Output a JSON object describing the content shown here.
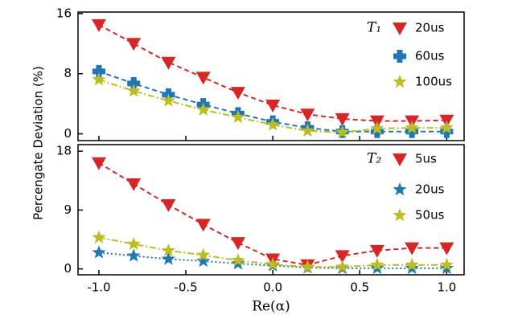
{
  "chart_data": [
    {
      "type": "line",
      "ylabel": "Percengate Deviation (%)",
      "legend_title": "T₁",
      "x": [
        -1.0,
        -0.8,
        -0.6,
        -0.4,
        -0.2,
        0.0,
        0.2,
        0.4,
        0.6,
        0.8,
        1.0
      ],
      "xlim": [
        -1.12,
        1.1
      ],
      "ylim": [
        -0.9,
        16.2
      ],
      "yticks": [
        0,
        8,
        16
      ],
      "series": [
        {
          "name": "20us",
          "color": "#d62728",
          "marker": "triangle",
          "dash": "6,4",
          "values": [
            14.5,
            12.0,
            9.5,
            7.5,
            5.5,
            3.8,
            2.6,
            2.0,
            1.7,
            1.7,
            1.8
          ]
        },
        {
          "name": "60us",
          "color": "#1f77b4",
          "marker": "plus",
          "dash": "6,4",
          "values": [
            8.3,
            6.7,
            5.2,
            3.9,
            2.7,
            1.6,
            0.8,
            0.3,
            0.3,
            0.3,
            0.3
          ]
        },
        {
          "name": "100us",
          "color": "#bcbd22",
          "marker": "star",
          "dash": "8,3,2,3",
          "values": [
            7.2,
            5.7,
            4.4,
            3.2,
            2.2,
            1.2,
            0.4,
            0.2,
            0.7,
            0.8,
            0.8
          ]
        }
      ]
    },
    {
      "type": "line",
      "xlabel": "Re(α)",
      "legend_title": "T₂",
      "x": [
        -1.0,
        -0.8,
        -0.6,
        -0.4,
        -0.2,
        0.0,
        0.2,
        0.4,
        0.6,
        0.8,
        1.0
      ],
      "xlim": [
        -1.12,
        1.1
      ],
      "ylim": [
        -0.9,
        19
      ],
      "yticks": [
        0,
        9,
        18
      ],
      "xticks": [
        {
          "value": -1,
          "label": "-1.0"
        },
        {
          "value": -0.5,
          "label": "-0.5"
        },
        {
          "value": 0,
          "label": "0.0"
        },
        {
          "value": 0.5,
          "label": "0.5"
        },
        {
          "value": 1,
          "label": "1.0"
        }
      ],
      "series": [
        {
          "name": "5us",
          "color": "#d62728",
          "marker": "triangle",
          "dash": "6,4",
          "values": [
            16.2,
            13.0,
            9.8,
            6.8,
            4.0,
            1.5,
            0.6,
            2.0,
            2.8,
            3.2,
            3.2
          ]
        },
        {
          "name": "20us",
          "color": "#1f77b4",
          "marker": "star",
          "dash": "2,3",
          "values": [
            2.5,
            2.0,
            1.5,
            1.2,
            0.8,
            0.5,
            0.2,
            0.1,
            0.1,
            0.1,
            0.1
          ]
        },
        {
          "name": "50us",
          "color": "#bcbd22",
          "marker": "star",
          "dash": "8,3,2,3",
          "values": [
            4.8,
            3.8,
            2.8,
            2.1,
            1.3,
            0.7,
            0.3,
            0.3,
            0.6,
            0.6,
            0.6
          ]
        }
      ]
    }
  ]
}
